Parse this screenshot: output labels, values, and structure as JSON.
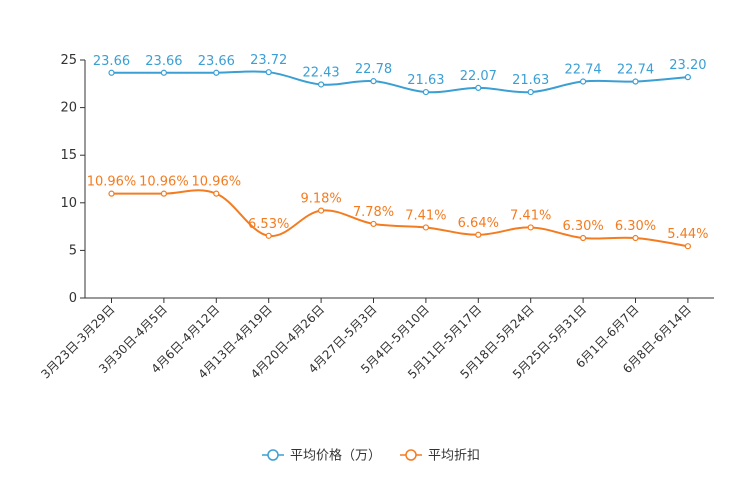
{
  "chart_data": {
    "type": "line",
    "title": "",
    "xlabel": "",
    "ylabel": "",
    "ylim": [
      0,
      25
    ],
    "yticks": [
      0,
      5,
      10,
      15,
      20,
      25
    ],
    "grid": false,
    "legend_position": "bottom-center",
    "categories": [
      "3月23日-3月29日",
      "3月30日-4月5日",
      "4月6日-4月12日",
      "4月13日-4月19日",
      "4月20日-4月26日",
      "4月27日-5月3日",
      "5月4日-5月10日",
      "5月11日-5月17日",
      "5月18日-5月24日",
      "5月25日-5月31日",
      "6月1日-6月7日",
      "6月8日-6月14日"
    ],
    "series": [
      {
        "name": "平均价格（万）",
        "color": "#3c9fd4",
        "values": [
          23.66,
          23.66,
          23.66,
          23.72,
          22.43,
          22.78,
          21.63,
          22.07,
          21.63,
          22.74,
          22.74,
          23.2
        ],
        "labels": [
          "23.66",
          "23.66",
          "23.66",
          "23.72",
          "22.43",
          "22.78",
          "21.63",
          "22.07",
          "21.63",
          "22.74",
          "22.74",
          "23.20"
        ]
      },
      {
        "name": "平均折扣",
        "color": "#f47c20",
        "values": [
          10.96,
          10.96,
          10.96,
          6.53,
          9.18,
          7.78,
          7.41,
          6.64,
          7.41,
          6.3,
          6.3,
          5.44
        ],
        "labels": [
          "10.96%",
          "10.96%",
          "10.96%",
          "6.53%",
          "9.18%",
          "7.78%",
          "7.41%",
          "6.64%",
          "7.41%",
          "6.30%",
          "6.30%",
          "5.44%"
        ]
      }
    ]
  }
}
